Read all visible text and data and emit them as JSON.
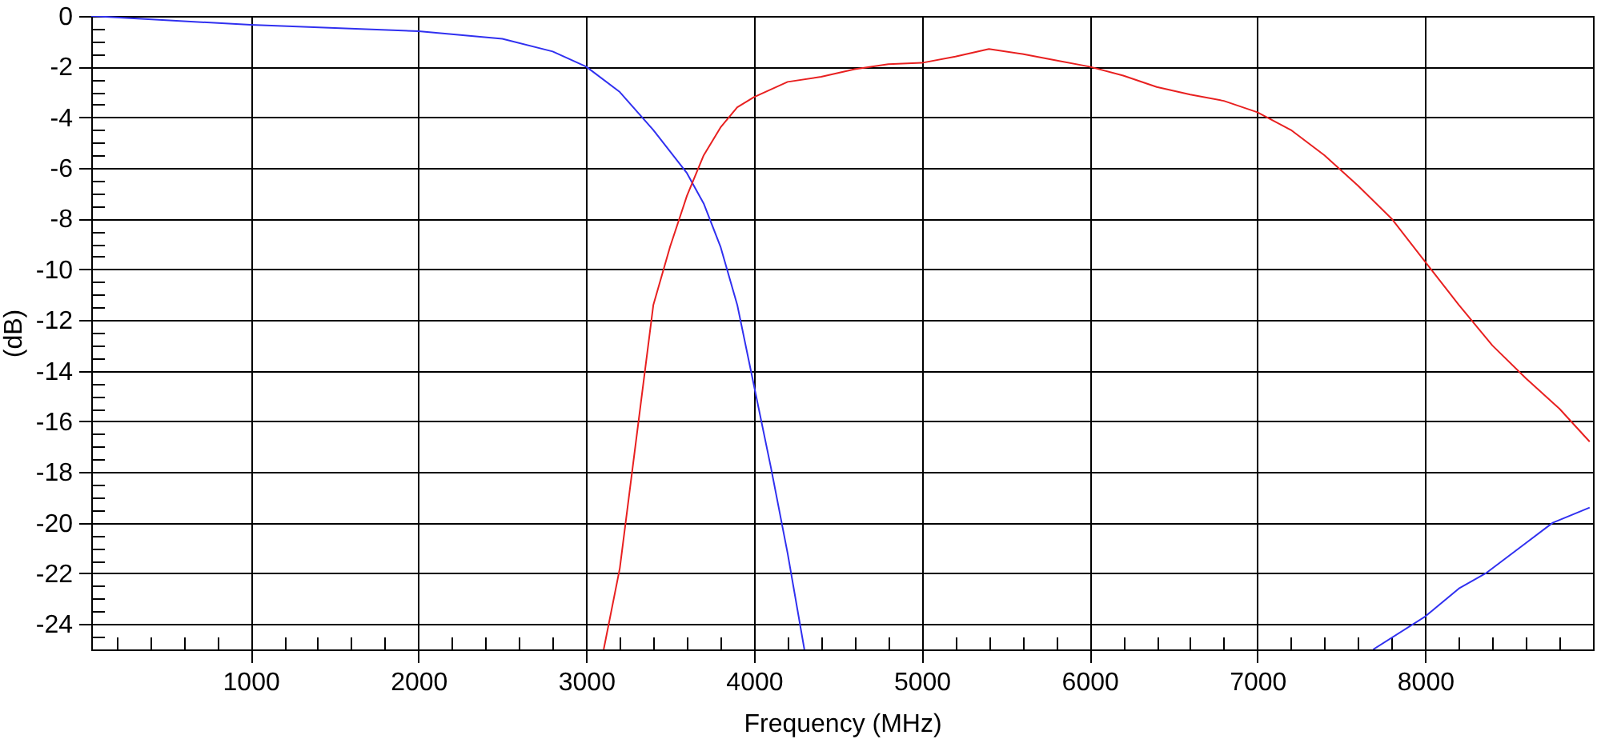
{
  "chart_data": {
    "type": "line",
    "xlabel": "Frequency (MHz)",
    "ylabel": "(dB)",
    "xlim": [
      50,
      9000
    ],
    "ylim": [
      -25,
      0
    ],
    "xticks": [
      {
        "value": 200,
        "label": null
      },
      {
        "value": 400,
        "label": null
      },
      {
        "value": 600,
        "label": null
      },
      {
        "value": 800,
        "label": null
      },
      1000,
      {
        "value": 1200,
        "label": null
      },
      {
        "value": 1400,
        "label": null
      },
      {
        "value": 1600,
        "label": null
      },
      {
        "value": 1800,
        "label": null
      },
      2000,
      {
        "value": 2200,
        "label": null
      },
      {
        "value": 2400,
        "label": null
      },
      {
        "value": 2600,
        "label": null
      },
      {
        "value": 2800,
        "label": null
      },
      3000,
      {
        "value": 3200,
        "label": null
      },
      {
        "value": 3400,
        "label": null
      },
      {
        "value": 3600,
        "label": null
      },
      {
        "value": 3800,
        "label": null
      },
      4000,
      {
        "value": 4200,
        "label": null
      },
      {
        "value": 4400,
        "label": null
      },
      {
        "value": 4600,
        "label": null
      },
      {
        "value": 4800,
        "label": null
      },
      5000,
      {
        "value": 5200,
        "label": null
      },
      {
        "value": 5400,
        "label": null
      },
      {
        "value": 5600,
        "label": null
      },
      {
        "value": 5800,
        "label": null
      },
      6000,
      {
        "value": 6200,
        "label": null
      },
      {
        "value": 6400,
        "label": null
      },
      {
        "value": 6600,
        "label": null
      },
      {
        "value": 6800,
        "label": null
      },
      7000,
      {
        "value": 7200,
        "label": null
      },
      {
        "value": 7400,
        "label": null
      },
      {
        "value": 7600,
        "label": null
      },
      {
        "value": 7800,
        "label": null
      },
      8000,
      {
        "value": 8200,
        "label": null
      },
      {
        "value": 8400,
        "label": null
      },
      {
        "value": 8600,
        "label": null
      },
      {
        "value": 8800,
        "label": null
      }
    ],
    "yticks": [
      {
        "value": -24.5,
        "label": null
      },
      -24,
      {
        "value": -23.5,
        "label": null
      },
      {
        "value": -23,
        "label": null
      },
      {
        "value": -22.5,
        "label": null
      },
      -22,
      {
        "value": -21.5,
        "label": null
      },
      {
        "value": -21,
        "label": null
      },
      {
        "value": -20.5,
        "label": null
      },
      -20,
      {
        "value": -19.5,
        "label": null
      },
      {
        "value": -19,
        "label": null
      },
      {
        "value": -18.5,
        "label": null
      },
      -18,
      {
        "value": -17.5,
        "label": null
      },
      {
        "value": -17,
        "label": null
      },
      {
        "value": -16.5,
        "label": null
      },
      -16,
      {
        "value": -15.5,
        "label": null
      },
      {
        "value": -15,
        "label": null
      },
      {
        "value": -14.5,
        "label": null
      },
      -14,
      {
        "value": -13.5,
        "label": null
      },
      {
        "value": -13,
        "label": null
      },
      {
        "value": -12.5,
        "label": null
      },
      -12,
      {
        "value": -11.5,
        "label": null
      },
      {
        "value": -11,
        "label": null
      },
      {
        "value": -10.5,
        "label": null
      },
      -10,
      {
        "value": -9.5,
        "label": null
      },
      {
        "value": -9,
        "label": null
      },
      {
        "value": -8.5,
        "label": null
      },
      -8,
      {
        "value": -7.5,
        "label": null
      },
      {
        "value": -7,
        "label": null
      },
      {
        "value": -6.5,
        "label": null
      },
      -6,
      {
        "value": -5.5,
        "label": null
      },
      {
        "value": -5,
        "label": null
      },
      {
        "value": -4.5,
        "label": null
      },
      -4,
      {
        "value": -3.5,
        "label": null
      },
      {
        "value": -3,
        "label": null
      },
      {
        "value": -2.5,
        "label": null
      },
      -2,
      {
        "value": -1.5,
        "label": null
      },
      {
        "value": -1,
        "label": null
      },
      {
        "value": -0.5,
        "label": null
      },
      0
    ],
    "grid": true,
    "line_style": "solid",
    "series": [
      {
        "color": "#3030f0",
        "x": [
          50,
          1000,
          2000,
          2500,
          2800,
          3000,
          3200,
          3400,
          3600,
          3700,
          3800,
          3900,
          4000,
          4100,
          4200,
          4300
        ],
        "values": [
          0,
          -0.35,
          -0.6,
          -0.9,
          -1.4,
          -2.0,
          -3.0,
          -4.5,
          -6.2,
          -7.4,
          -9.1,
          -11.4,
          -14.6,
          -17.8,
          -21.2,
          -25
        ]
      },
      {
        "color": "#3030f0",
        "x": [
          7690,
          8000,
          8200,
          8360,
          8600,
          8760,
          8980
        ],
        "values": [
          -25,
          -23.7,
          -22.6,
          -22,
          -20.8,
          -20,
          -19.4
        ]
      },
      {
        "color": "#e82020",
        "x": [
          3104,
          3200,
          3400,
          3500,
          3600,
          3700,
          3800,
          3900,
          4000,
          4200,
          4400,
          4600,
          4800,
          5000,
          5200,
          5400,
          5600,
          5800,
          6000,
          6200,
          6400,
          6600,
          6800,
          7000,
          7200,
          7400,
          7600,
          7800,
          8000,
          8200,
          8400,
          8600,
          8800,
          8980
        ],
        "values": [
          -25,
          -21.8,
          -11.4,
          -9.1,
          -7.1,
          -5.5,
          -4.4,
          -3.6,
          -3.2,
          -2.6,
          -2.4,
          -2.1,
          -1.9,
          -1.85,
          -1.6,
          -1.3,
          -1.5,
          -1.75,
          -2.0,
          -2.35,
          -2.8,
          -3.1,
          -3.35,
          -3.8,
          -4.5,
          -5.5,
          -6.7,
          -8.0,
          -9.7,
          -11.4,
          -13.0,
          -14.3,
          -15.5,
          -16.8
        ]
      }
    ]
  }
}
